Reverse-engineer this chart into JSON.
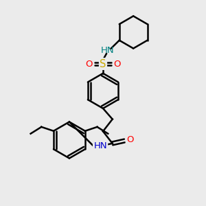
{
  "bg_color": "#ebebeb",
  "atom_colors": {
    "C": "#000000",
    "N": "#0000cd",
    "O": "#ff0000",
    "S": "#ccaa00",
    "H": "#008080"
  },
  "bond_color": "#000000",
  "bond_width": 1.8,
  "figsize": [
    3.0,
    3.0
  ],
  "dpi": 100,
  "font_size": 9.5
}
